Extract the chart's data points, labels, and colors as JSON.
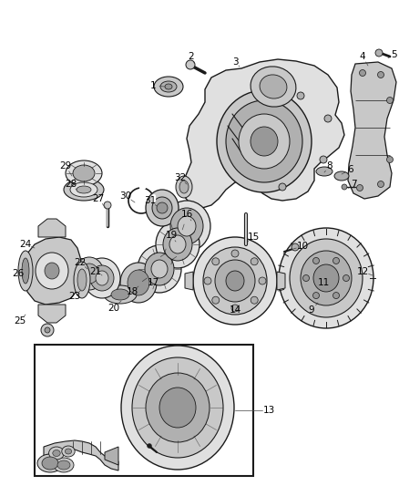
{
  "bg": "#ffffff",
  "dark": "#1a1a1a",
  "gray1": "#e0e0e0",
  "gray2": "#c8c8c8",
  "gray3": "#b0b0b0",
  "gray4": "#989898",
  "lw_main": 1.0,
  "lw_thin": 0.6,
  "figw": 4.38,
  "figh": 5.33,
  "dpi": 100,
  "label_fontsize": 7.5
}
